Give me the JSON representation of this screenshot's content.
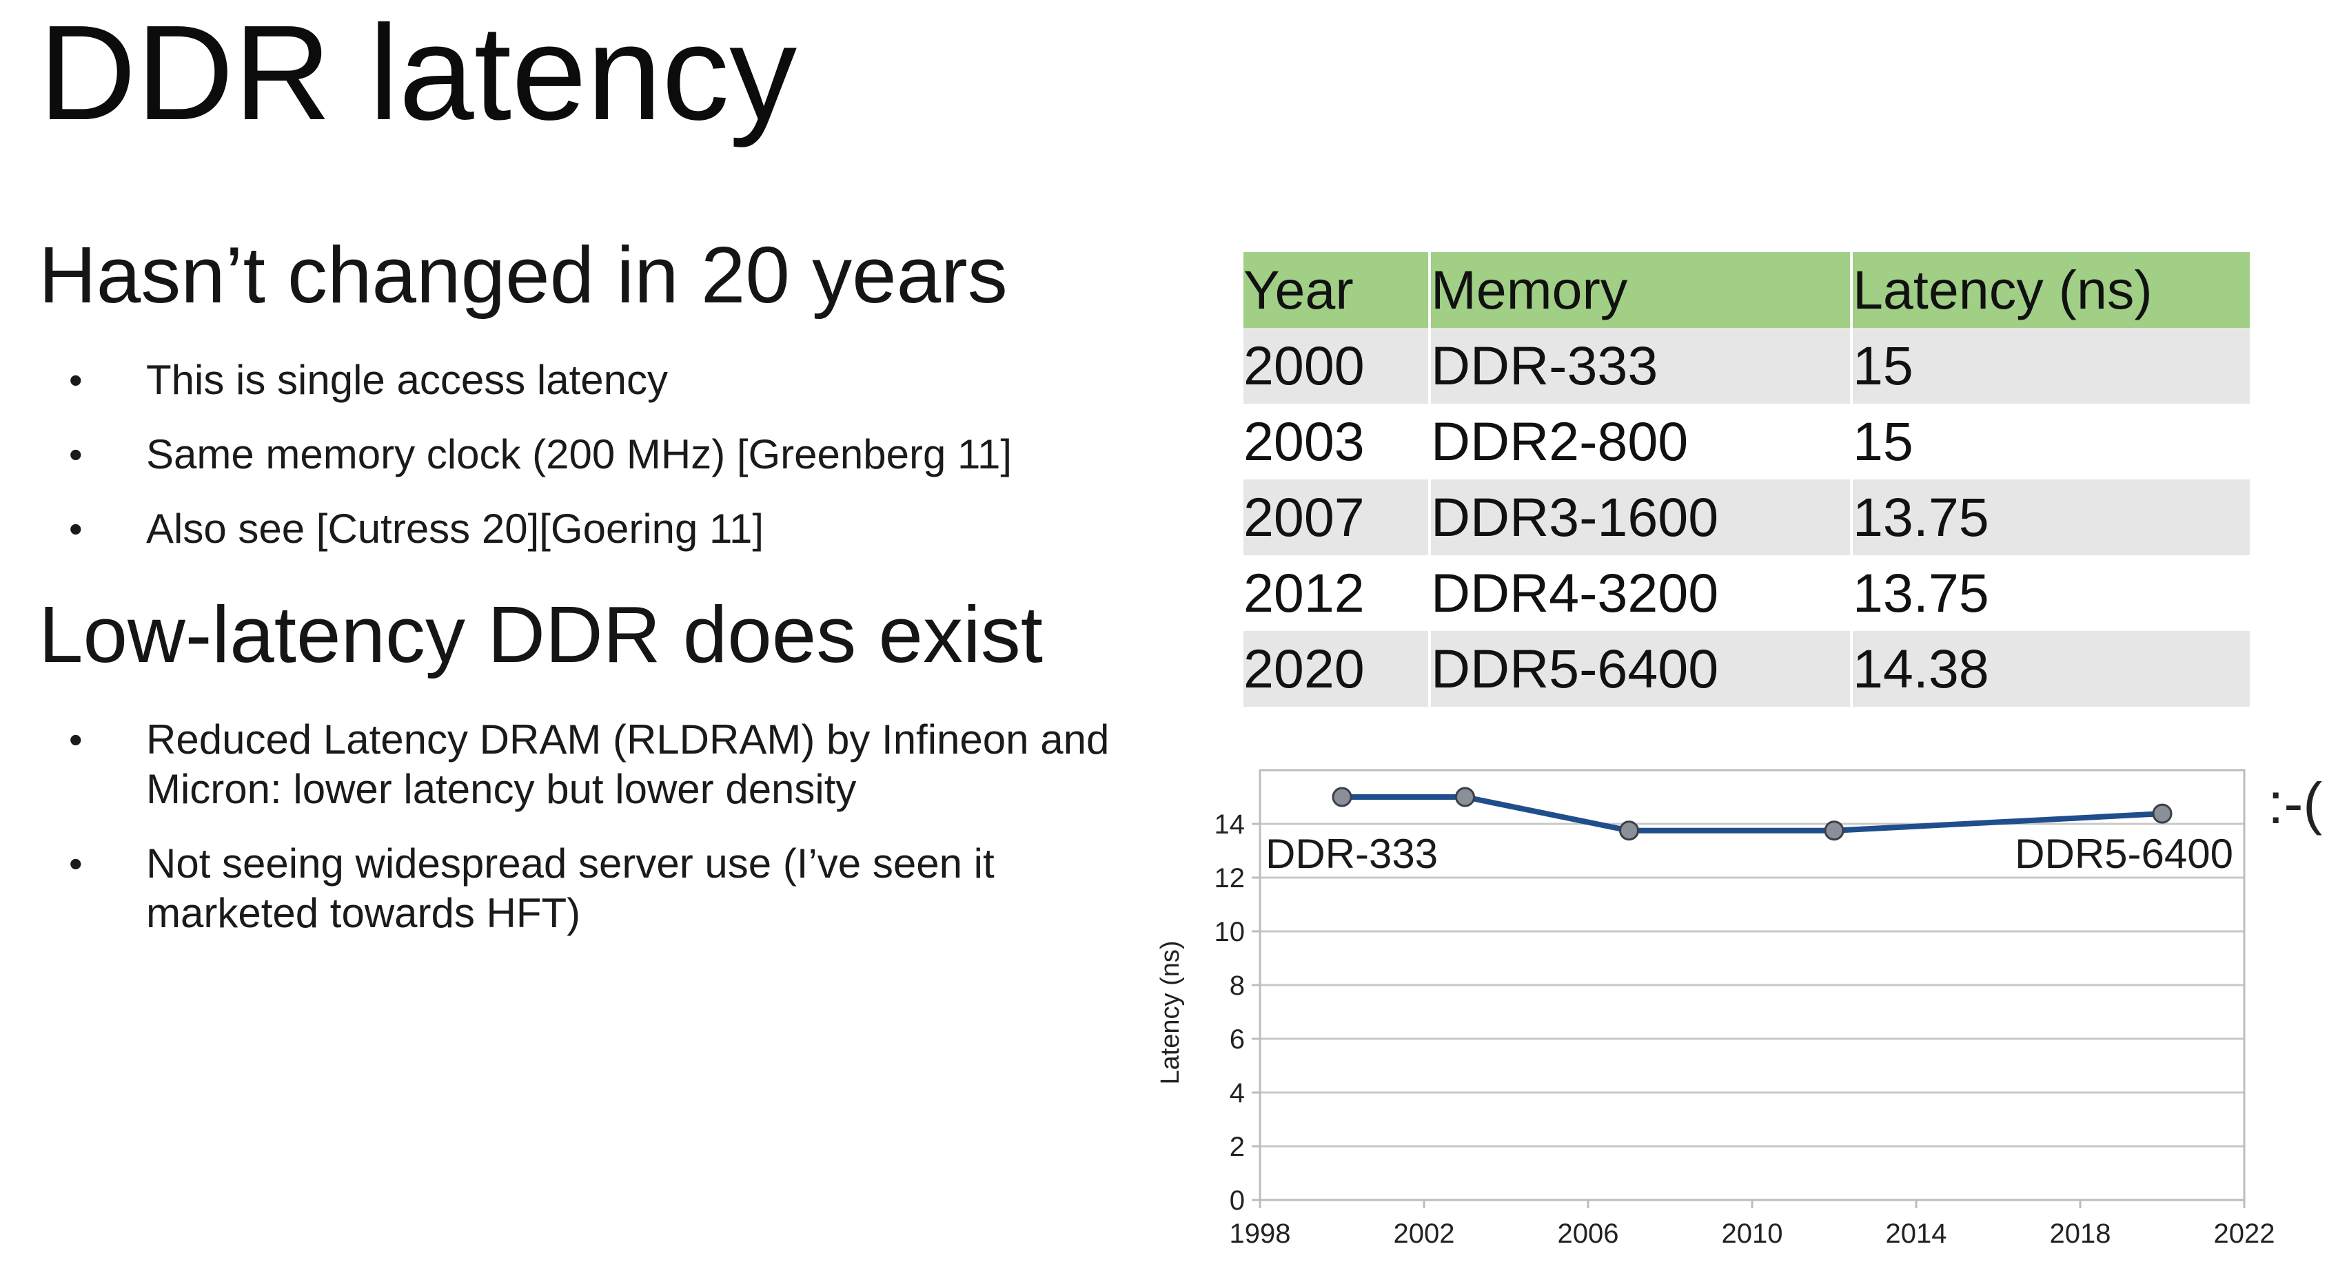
{
  "slide": {
    "title": "DDR latency",
    "frown": ":-("
  },
  "section1": {
    "heading": "Hasn’t changed in 20 years",
    "bullets": [
      "This is single access latency",
      "Same memory clock (200 MHz) [Greenberg 11]",
      "Also see [Cutress 20][Goering 11]"
    ]
  },
  "section2": {
    "heading": "Low-latency DDR does exist",
    "bullets": [
      "Reduced Latency DRAM (RLDRAM) by Infineon and Micron: lower latency but lower density",
      "Not seeing widespread server use (I’ve seen it marketed towards HFT)"
    ]
  },
  "table": {
    "headers": [
      "Year",
      "Memory",
      "Latency (ns)"
    ],
    "header_color": "#a0cf85",
    "rows": [
      [
        "2000",
        "DDR-333",
        "15"
      ],
      [
        "2003",
        "DDR2-800",
        "15"
      ],
      [
        "2007",
        "DDR3-1600",
        "13.75"
      ],
      [
        "2012",
        "DDR4-3200",
        "13.75"
      ],
      [
        "2020",
        "DDR5-6400",
        "14.38"
      ]
    ]
  },
  "chart_data": {
    "type": "line",
    "x": [
      2000,
      2003,
      2007,
      2012,
      2020
    ],
    "series": [
      {
        "values": [
          15,
          15,
          13.75,
          13.75,
          14.38
        ],
        "color": "#1f4e8c"
      }
    ],
    "point_labels": [
      {
        "x": 2000,
        "text": "DDR-333"
      },
      {
        "x": 2020,
        "text": "DDR5-6400"
      }
    ],
    "ylabel": "Latency (ns)",
    "xlabel": "",
    "xlim": [
      1998,
      2022
    ],
    "ylim": [
      0,
      14
    ],
    "xticks": [
      "1998",
      "2002",
      "2006",
      "2010",
      "2014",
      "2018",
      "2022"
    ],
    "yticks": [
      "0",
      "2",
      "4",
      "6",
      "8",
      "10",
      "12",
      "14"
    ],
    "grid": true,
    "legend": "none"
  }
}
